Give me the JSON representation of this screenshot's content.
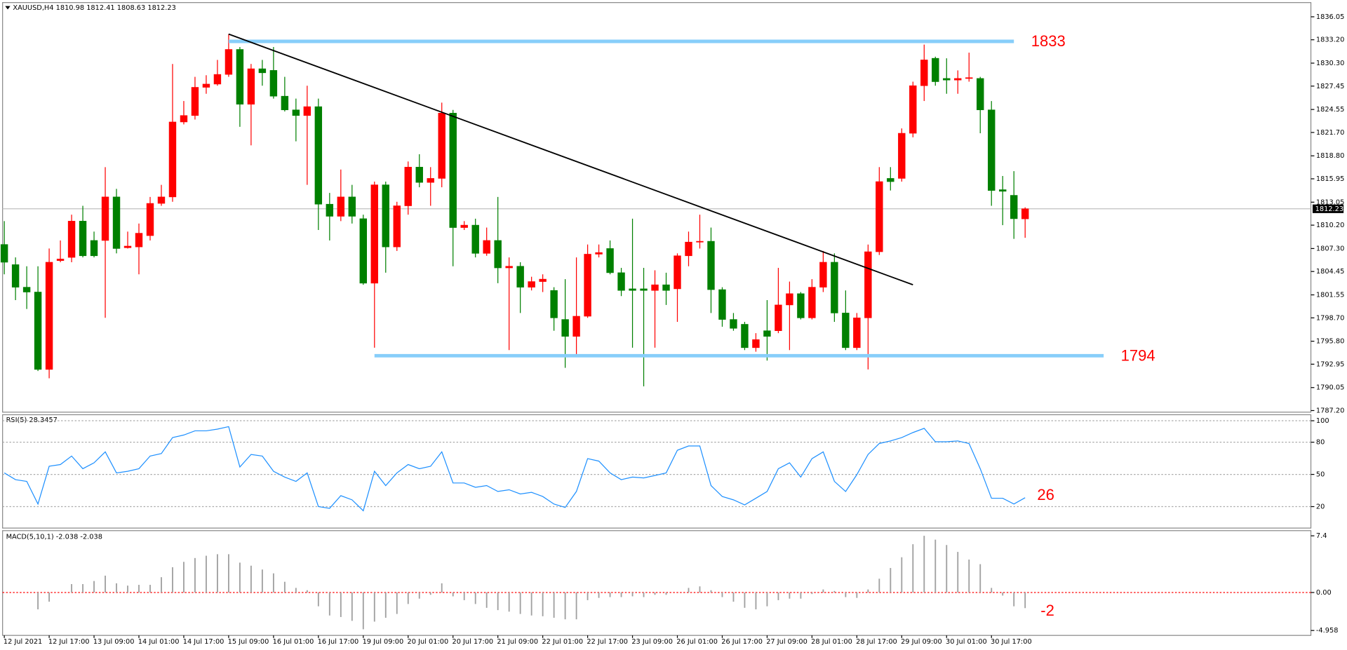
{
  "chart_data": [
    {
      "type": "candlestick",
      "title": "XAUUSD,H4  1810.98 1812.41 1808.63 1812.23",
      "categories": [
        "12 Jul 2021",
        null,
        null,
        null,
        "12 Jul 17:00",
        null,
        null,
        null,
        "13 Jul 09:00",
        null,
        null,
        null,
        "14 Jul 01:00",
        null,
        null,
        null,
        "14 Jul 17:00",
        null,
        null,
        null,
        "15 Jul 09:00",
        null,
        null,
        null,
        "16 Jul 01:00",
        null,
        null,
        null,
        "16 Jul 17:00",
        null,
        null,
        null,
        "19 Jul 09:00",
        null,
        null,
        null,
        "20 Jul 01:00",
        null,
        null,
        null,
        "20 Jul 17:00",
        null,
        null,
        null,
        "21 Jul 09:00",
        null,
        null,
        null,
        "22 Jul 01:00",
        null,
        null,
        null,
        "22 Jul 17:00",
        null,
        null,
        null,
        "23 Jul 09:00",
        null,
        null,
        null,
        "26 Jul 01:00",
        null,
        null,
        null,
        "26 Jul 17:00",
        null,
        null,
        null,
        "27 Jul 09:00",
        null,
        null,
        null,
        "28 Jul 01:00",
        null,
        null,
        null,
        "28 Jul 17:00",
        null,
        null,
        null,
        "29 Jul 09:00",
        null,
        null,
        null,
        "30 Jul 01:00",
        null,
        null,
        null,
        "30 Jul 17:00",
        null,
        null,
        null
      ],
      "open": [
        1807.8,
        1805.3,
        1802.5,
        1801.9,
        1792.3,
        1805.8,
        1806.2,
        1810.7,
        1808.3,
        1808.3,
        1813.7,
        1807.4,
        1807.5,
        1808.9,
        1812.9,
        1813.7,
        1823.0,
        1823.8,
        1827.3,
        1827.7,
        1828.9,
        1832.0,
        1825.2,
        1829.6,
        1829.4,
        1826.2,
        1824.5,
        1823.8,
        1824.9,
        1812.8,
        1811.3,
        1813.7,
        1811.0,
        1803.0,
        1815.2,
        1807.5,
        1812.6,
        1817.4,
        1815.5,
        1816.0,
        1824.1,
        1809.9,
        1810.2,
        1806.7,
        1808.3,
        1804.9,
        1805.1,
        1802.5,
        1803.2,
        1802.1,
        1798.5,
        1796.4,
        1798.9,
        1806.6,
        1807.3,
        1804.3,
        1802.3,
        1802.3,
        1802.1,
        1802.8,
        1802.3,
        1806.4,
        1808.1,
        1808.2,
        1802.2,
        1798.5,
        1797.9,
        1795.0,
        1797.1,
        1797.1,
        1800.3,
        1801.7,
        1798.7,
        1802.5,
        1805.6,
        1799.3,
        1795.0,
        1798.7,
        1806.9,
        1816.0,
        1816.0,
        1821.6,
        1827.5,
        1830.9,
        1828.4,
        1828.2,
        1828.4,
        1828.4,
        1824.5,
        1814.6,
        1813.9,
        1810.98
      ],
      "high": [
        1810.7,
        1806.2,
        1805.1,
        1805.1,
        1807.3,
        1808.3,
        1811.5,
        1812.6,
        1809.4,
        1817.4,
        1814.7,
        1809.4,
        1810.4,
        1813.7,
        1815.2,
        1830.2,
        1825.6,
        1828.6,
        1828.8,
        1830.7,
        1833.9,
        1832.3,
        1830.2,
        1830.7,
        1832.3,
        1828.6,
        1825.9,
        1827.5,
        1825.9,
        1814.2,
        1817.1,
        1815.2,
        1811.5,
        1815.6,
        1815.6,
        1813.1,
        1818.1,
        1819.0,
        1817.4,
        1825.4,
        1824.5,
        1810.7,
        1811.0,
        1809.9,
        1813.7,
        1806.2,
        1805.6,
        1803.8,
        1804.1,
        1802.5,
        1803.5,
        1806.2,
        1807.8,
        1807.8,
        1808.3,
        1804.9,
        1811.0,
        1804.9,
        1804.6,
        1804.3,
        1806.7,
        1809.4,
        1811.5,
        1809.9,
        1802.5,
        1799.3,
        1798.2,
        1796.8,
        1800.9,
        1804.9,
        1803.2,
        1801.9,
        1803.5,
        1807.0,
        1806.7,
        1802.1,
        1799.3,
        1807.8,
        1817.4,
        1817.4,
        1822.2,
        1828.0,
        1832.6,
        1831.1,
        1830.9,
        1829.4,
        1831.6,
        1828.6,
        1825.6,
        1816.3,
        1816.9,
        1812.41
      ],
      "low": [
        1804.1,
        1800.9,
        1799.8,
        1792.1,
        1791.2,
        1805.6,
        1805.6,
        1806.2,
        1806.2,
        1798.7,
        1806.7,
        1807.3,
        1804.1,
        1808.3,
        1812.6,
        1813.1,
        1822.7,
        1823.3,
        1826.5,
        1827.5,
        1828.6,
        1822.4,
        1820.1,
        1827.5,
        1825.9,
        1824.3,
        1820.6,
        1815.2,
        1809.6,
        1808.3,
        1810.7,
        1810.4,
        1802.8,
        1795.0,
        1804.3,
        1807.0,
        1811.5,
        1814.9,
        1812.6,
        1814.9,
        1805.1,
        1809.6,
        1806.2,
        1806.4,
        1803.0,
        1794.7,
        1799.3,
        1802.1,
        1801.9,
        1797.1,
        1792.5,
        1793.9,
        1798.7,
        1806.2,
        1804.1,
        1801.4,
        1795.0,
        1790.2,
        1795.0,
        1800.3,
        1798.2,
        1805.1,
        1807.3,
        1799.3,
        1797.6,
        1797.1,
        1794.7,
        1794.5,
        1793.4,
        1796.8,
        1794.7,
        1798.5,
        1798.5,
        1801.9,
        1798.2,
        1794.7,
        1794.7,
        1792.3,
        1806.5,
        1814.5,
        1815.6,
        1821.1,
        1825.6,
        1827.5,
        1826.5,
        1826.5,
        1828.0,
        1821.6,
        1812.6,
        1810.2,
        1808.5,
        1808.63
      ],
      "close": [
        1805.6,
        1802.5,
        1801.9,
        1792.3,
        1805.6,
        1806.0,
        1810.7,
        1806.4,
        1806.4,
        1813.7,
        1807.3,
        1807.6,
        1809.2,
        1812.9,
        1813.7,
        1823.0,
        1823.8,
        1827.3,
        1827.7,
        1828.9,
        1832.0,
        1825.2,
        1829.6,
        1829.1,
        1826.2,
        1824.5,
        1823.8,
        1824.9,
        1812.8,
        1811.3,
        1813.7,
        1811.3,
        1803.0,
        1815.2,
        1807.5,
        1812.6,
        1817.4,
        1815.5,
        1816.0,
        1824.1,
        1809.9,
        1810.2,
        1806.7,
        1808.3,
        1804.9,
        1805.1,
        1802.5,
        1803.2,
        1803.5,
        1798.7,
        1796.4,
        1798.9,
        1806.6,
        1806.8,
        1804.3,
        1802.1,
        1802.1,
        1802.1,
        1802.8,
        1802.1,
        1806.4,
        1808.1,
        1808.2,
        1802.2,
        1798.5,
        1797.4,
        1795.0,
        1796.0,
        1796.4,
        1800.3,
        1801.7,
        1798.7,
        1802.5,
        1805.6,
        1799.3,
        1795.0,
        1798.7,
        1806.9,
        1815.6,
        1815.6,
        1821.6,
        1827.5,
        1830.7,
        1828.0,
        1828.2,
        1828.4,
        1828.5,
        1824.5,
        1814.5,
        1814.4,
        1811.0,
        1812.23
      ],
      "up_color": "#ff0000",
      "down_color": "#008000",
      "ylim": [
        1787.0,
        1837.6
      ],
      "yticks": [
        1836.05,
        {
          "value": 1833.2,
          "label": "1833.20"
        },
        {
          "value": 1830.3,
          "label": "1830.30"
        },
        1827.45,
        1824.55,
        {
          "value": 1821.7,
          "label": "1821.70"
        },
        {
          "value": 1818.8,
          "label": "1818.80"
        },
        1815.95,
        1813.05,
        {
          "value": 1810.2,
          "label": "1810.20"
        },
        {
          "value": 1807.3,
          "label": "1807.30"
        },
        1804.45,
        1801.55,
        {
          "value": 1798.7,
          "label": "1798.70"
        },
        {
          "value": 1795.8,
          "label": "1795.80"
        },
        1792.95,
        1790.05,
        {
          "value": 1787.2,
          "label": "1787.20"
        }
      ],
      "last_price": 1812.23,
      "levels": [
        {
          "value": 1833,
          "from": 20,
          "to": 90,
          "color": "#87cefa"
        },
        {
          "value": 1794,
          "from": 33,
          "to": 98,
          "color": "#87cefa"
        }
      ],
      "trendline": {
        "from": [
          20,
          1833.9
        ],
        "to": [
          81,
          1802.8
        ],
        "color": "#000000"
      }
    },
    {
      "type": "line",
      "title": "RSI(5) 28.3457",
      "color": "#1e90ff",
      "values": [
        51.4,
        45.1,
        43.5,
        22.4,
        57.6,
        59.2,
        67.1,
        55.3,
        60.8,
        71.0,
        51.4,
        52.9,
        55.3,
        67.1,
        69.4,
        84.3,
        86.7,
        90.6,
        90.6,
        92.2,
        94.5,
        56.9,
        68.6,
        67.1,
        52.9,
        47.5,
        43.5,
        51.4,
        20.0,
        18.4,
        30.2,
        26.3,
        16.1,
        52.9,
        39.6,
        51.4,
        59.2,
        55.3,
        57.6,
        71.0,
        42.0,
        42.0,
        38.0,
        39.6,
        34.1,
        35.7,
        31.8,
        33.3,
        29.4,
        22.4,
        19.2,
        34.1,
        64.7,
        62.4,
        51.4,
        45.1,
        47.5,
        46.7,
        49.0,
        51.4,
        72.5,
        76.5,
        76.5,
        39.6,
        29.4,
        26.3,
        21.6,
        27.8,
        34.1,
        55.3,
        60.8,
        47.5,
        64.7,
        71.0,
        43.5,
        34.1,
        49.8,
        68.6,
        78.8,
        81.2,
        84.3,
        89.0,
        92.9,
        80.4,
        80.4,
        81.2,
        78.8,
        55.3,
        27.8,
        27.8,
        22.4,
        28.3
      ],
      "ylim": [
        0,
        104
      ],
      "yticks": [
        100,
        80,
        50,
        20
      ],
      "grid": true,
      "annotation": "26"
    },
    {
      "type": "bar",
      "title": "MACD(5,10,1) -2.038 -2.038",
      "color": "#a0a0a0",
      "values": [
        0,
        0,
        0,
        -2.2,
        -1.2,
        0,
        1.1,
        1.1,
        1.5,
        2.2,
        1.2,
        0.9,
        1.0,
        1.0,
        2.0,
        3.3,
        4.0,
        4.5,
        4.8,
        5.0,
        5.0,
        3.9,
        3.5,
        3.0,
        2.5,
        1.4,
        0.6,
        0.3,
        -1.8,
        -3.0,
        -3.2,
        -3.7,
        -4.8,
        -3.8,
        -3.3,
        -2.8,
        -1.5,
        -0.8,
        -0.3,
        1.2,
        -0.5,
        -1.0,
        -1.5,
        -2.0,
        -2.3,
        -2.5,
        -2.8,
        -3.0,
        -3.1,
        -3.3,
        -3.5,
        -3.5,
        -1.0,
        -0.7,
        -0.6,
        -0.6,
        -0.5,
        -0.6,
        -0.3,
        -0.3,
        0,
        0.6,
        0.8,
        0.3,
        -0.6,
        -1.2,
        -2.0,
        -2.2,
        -1.8,
        -1.0,
        -0.8,
        -0.8,
        -0.2,
        0.4,
        0.2,
        -0.6,
        -0.7,
        0.4,
        1.8,
        3.2,
        4.6,
        6.3,
        7.4,
        6.9,
        6.2,
        5.3,
        4.3,
        3.7,
        0.6,
        -0.4,
        -1.8,
        -2.038
      ],
      "ylim": [
        -5.6,
        7.85
      ],
      "yticks": [
        7.4,
        {
          "value": 0,
          "label": "0.00"
        },
        -4.958
      ],
      "zero_color": "#ff0000",
      "annotation": "-2"
    }
  ]
}
